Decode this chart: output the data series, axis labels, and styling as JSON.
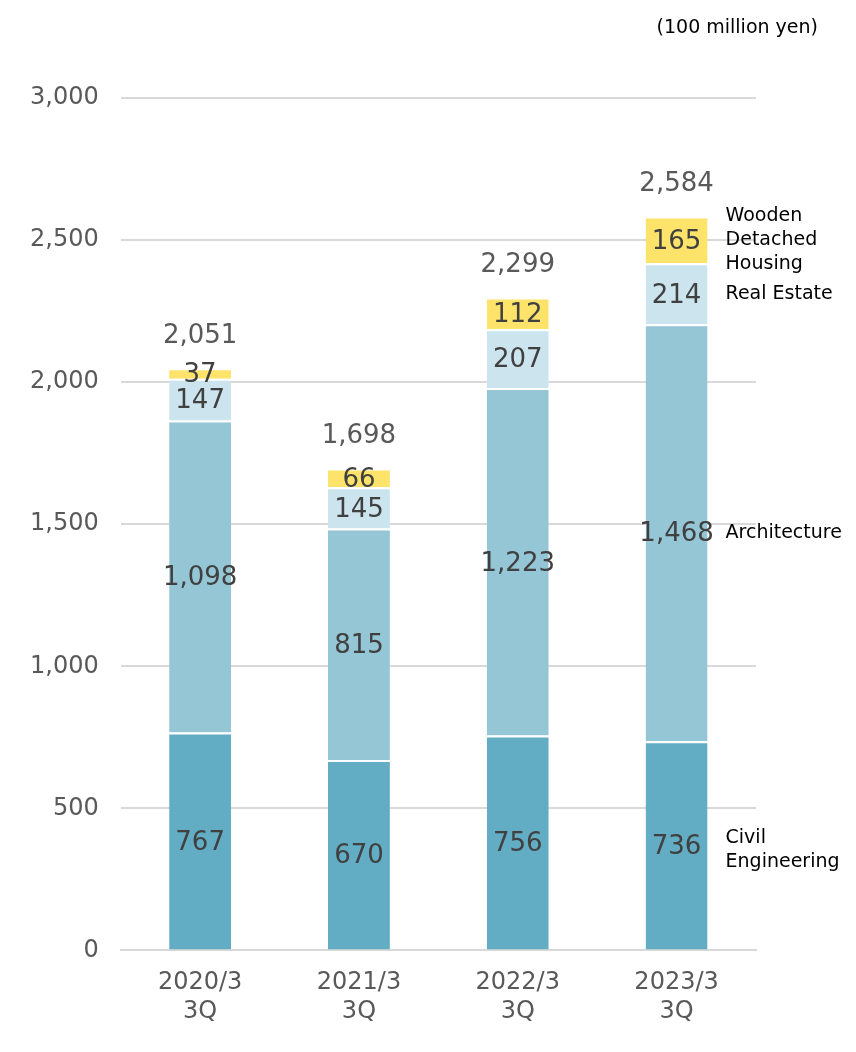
{
  "chart_data": {
    "type": "bar",
    "ylabel": "(100 million yen)",
    "categories": [
      "2020/3 3Q",
      "2021/3 3Q",
      "2022/3 3Q",
      "2023/3 3Q"
    ],
    "stacked": true,
    "grid": "y",
    "legend": false,
    "ylim": [
      0,
      3000
    ],
    "yticks": [
      0,
      500,
      {
        "value": 1000,
        "label": "1,000"
      },
      {
        "value": 1500,
        "label": "1,500"
      },
      {
        "value": 2000,
        "label": "2,000"
      },
      {
        "value": 2500,
        "label": "2,500"
      },
      {
        "value": 3000,
        "label": "3,000"
      }
    ],
    "totals": [
      "2,051",
      "1,698",
      "2,299",
      "2,584"
    ],
    "series": [
      {
        "name": "Civil Engineering",
        "color": "#62acc4",
        "values": [
          767,
          670,
          756,
          736
        ],
        "value_labels": [
          "767",
          "670",
          "756",
          "736"
        ]
      },
      {
        "name": "Architecture",
        "color": "#94c6d6",
        "values": [
          1098,
          815,
          1223,
          1468
        ],
        "value_labels": [
          "1,098",
          "815",
          "1,223",
          "1,468"
        ]
      },
      {
        "name": "Real Estate",
        "color": "#cce4ee",
        "values": [
          147,
          145,
          207,
          214
        ],
        "value_labels": [
          "147",
          "145",
          "207",
          "214"
        ]
      },
      {
        "name": "Wooden Detached Housing",
        "color": "#fde36a",
        "values": [
          37,
          66,
          112,
          165
        ],
        "value_labels": [
          "37",
          "66",
          "112",
          "165"
        ]
      }
    ]
  }
}
